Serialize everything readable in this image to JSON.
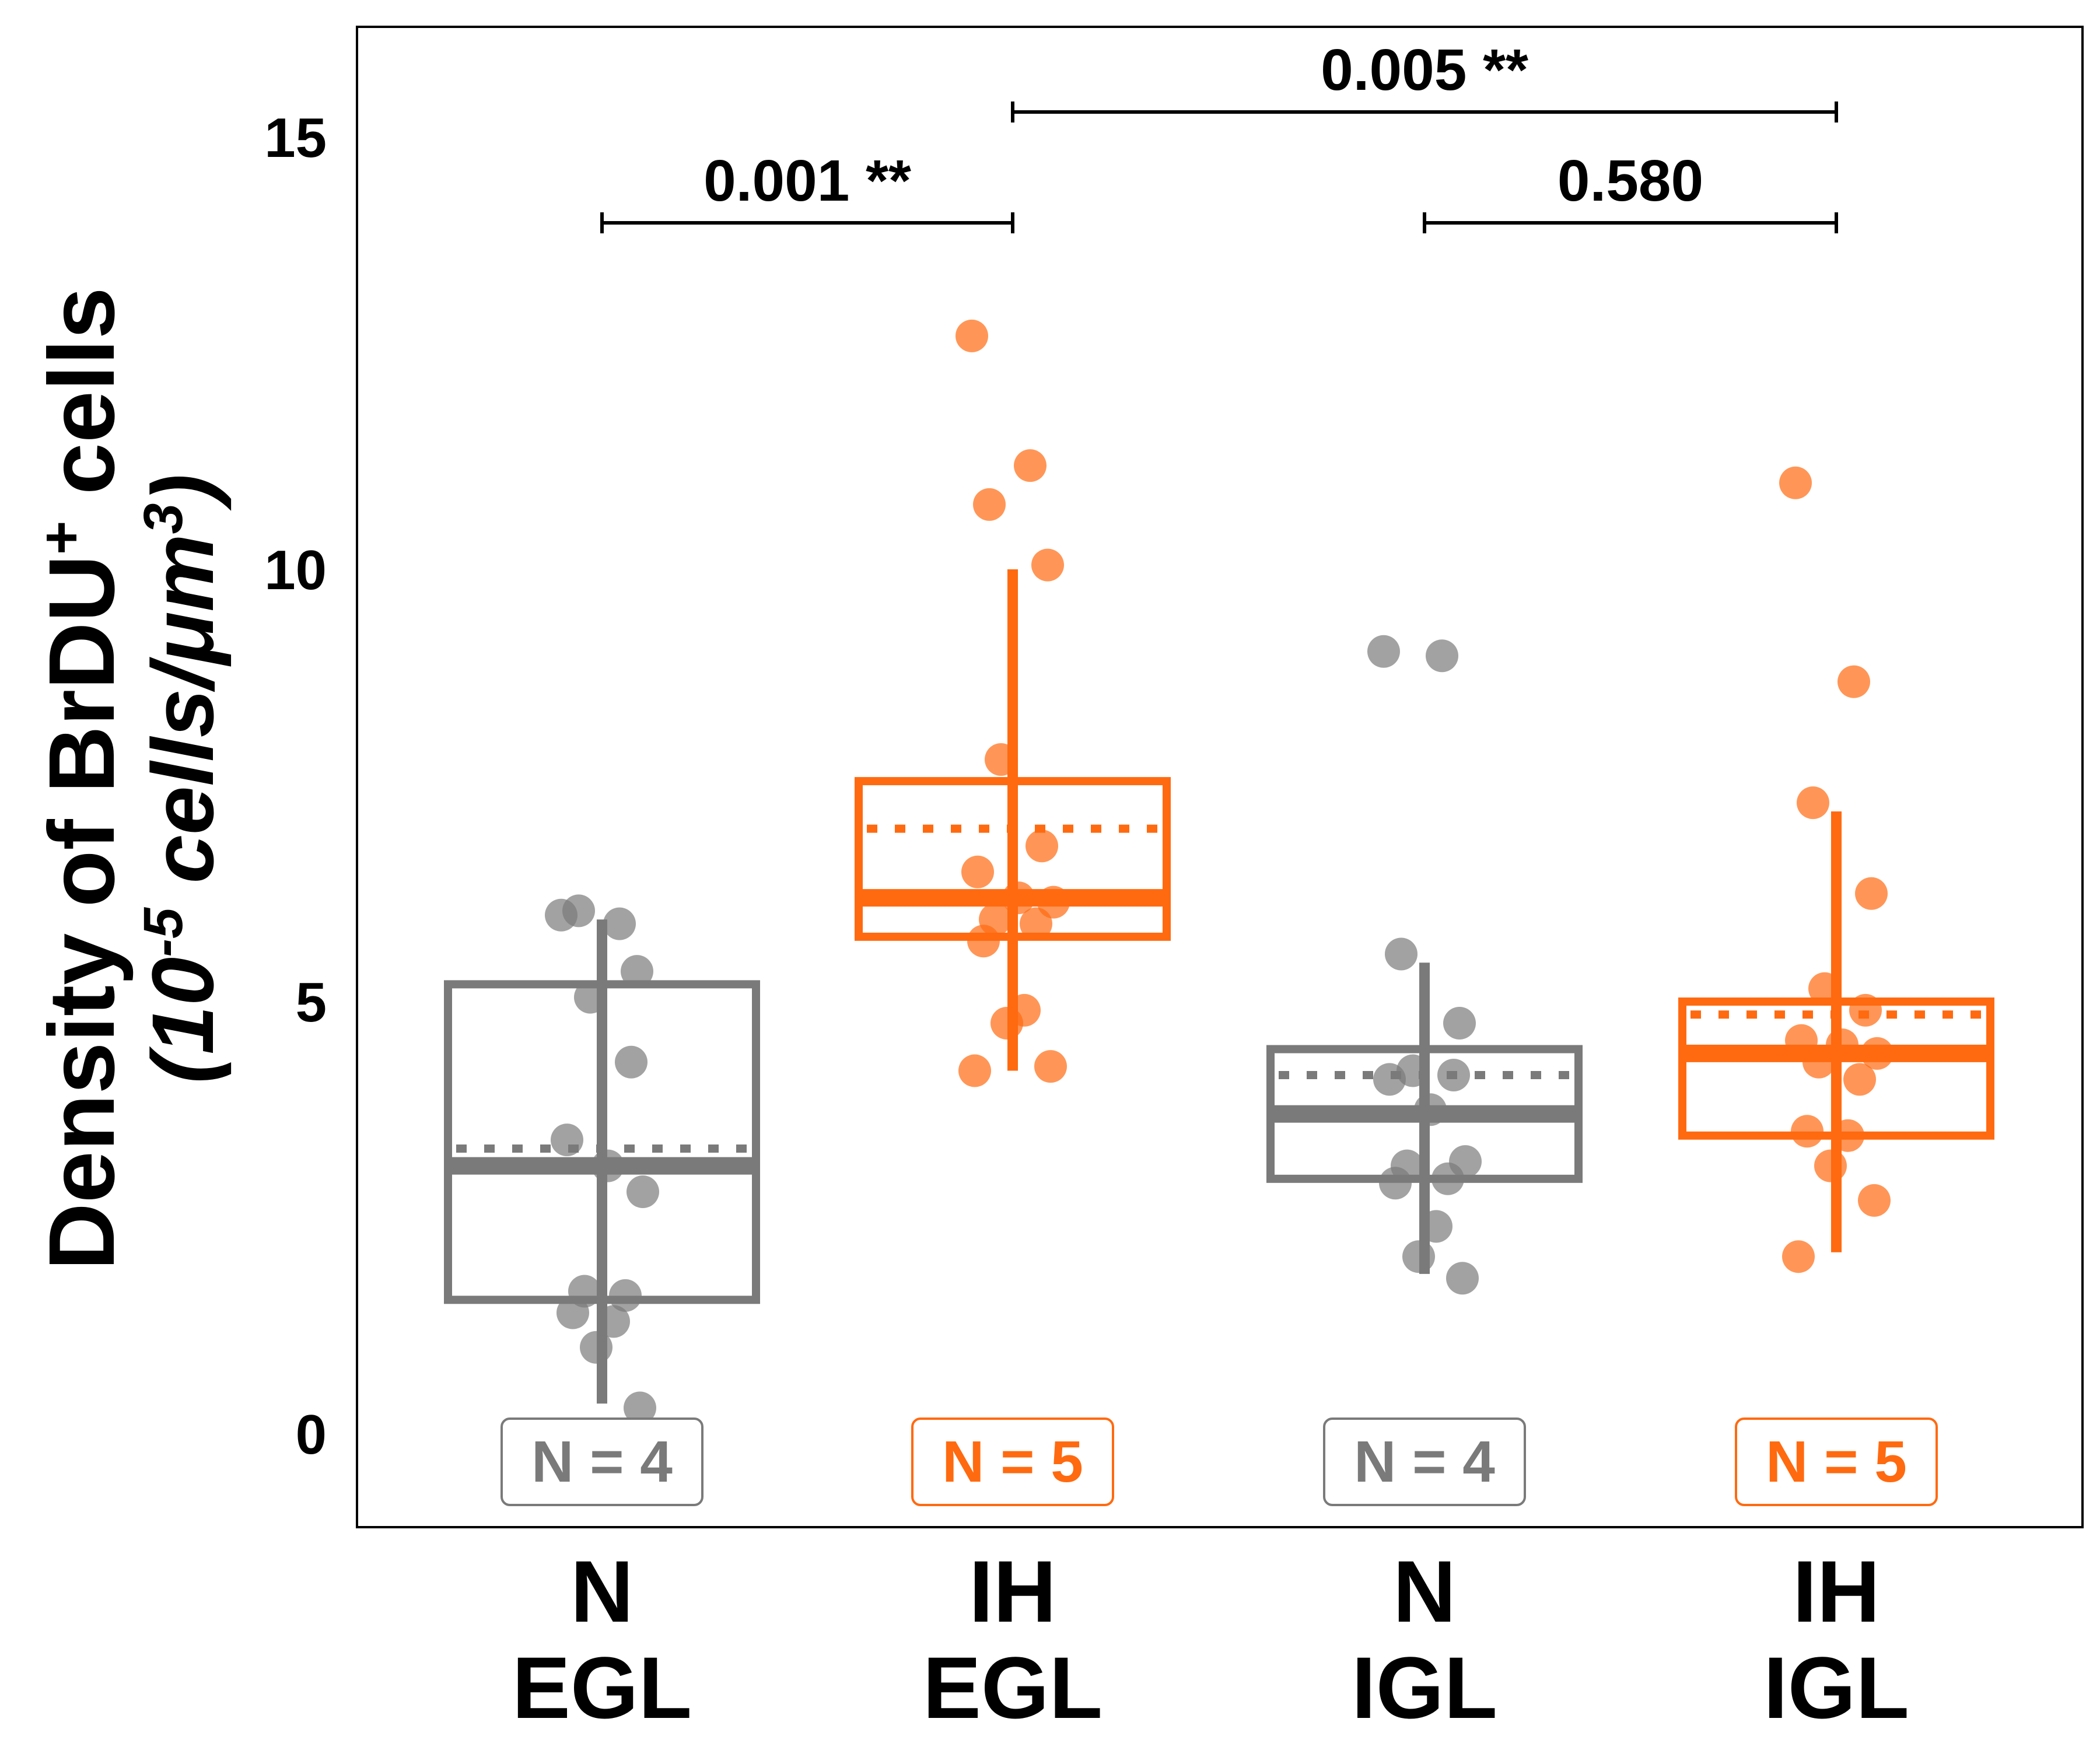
{
  "chart_data": {
    "type": "box",
    "ylabel_line1_main": "Density of BrDU",
    "ylabel_line1_sup": "+",
    "ylabel_line1_end": " cells",
    "ylabel_line2_open": "(10",
    "ylabel_line2_sup1": "-5",
    "ylabel_line2_mid": " cells/μm",
    "ylabel_line2_sup2": "3",
    "ylabel_line2_close": ")",
    "ylim": [
      -1.1,
      16.4
    ],
    "yticks": [
      "0",
      "5",
      "10",
      "15"
    ],
    "grid": false,
    "colors": {
      "N": "#7a7a7a",
      "IH": "#ff6a10"
    },
    "groups": [
      {
        "label_top": "N",
        "label_bottom": "EGL",
        "color": "#7a7a7a",
        "n_label": "N = 4",
        "box": {
          "q1": 1.55,
          "median": 3.1,
          "q3": 5.2,
          "mean": 3.3,
          "whisker_low": 0.35,
          "whisker_high": 5.95
        },
        "points": [
          6.0,
          5.9,
          6.05,
          5.35,
          5.05,
          4.3,
          3.4,
          3.1,
          2.8,
          1.65,
          1.6,
          1.4,
          1.3,
          1.0,
          0.3
        ]
      },
      {
        "label_top": "IH",
        "label_bottom": "EGL",
        "color": "#ff6a10",
        "n_label": "N = 5",
        "box": {
          "q1": 5.75,
          "median": 6.2,
          "q3": 7.55,
          "mean": 7.0,
          "whisker_low": 4.2,
          "whisker_high": 10.0
        },
        "points": [
          12.7,
          11.2,
          10.75,
          10.05,
          7.8,
          6.8,
          6.5,
          6.2,
          6.15,
          5.95,
          5.9,
          5.7,
          4.9,
          4.75,
          4.25,
          4.2
        ]
      },
      {
        "label_top": "N",
        "label_bottom": "IGL",
        "color": "#7a7a7a",
        "n_label": "N = 4",
        "box": {
          "q1": 2.95,
          "median": 3.7,
          "q3": 4.45,
          "mean": 4.15,
          "whisker_low": 1.85,
          "whisker_high": 5.45
        },
        "points": [
          9.05,
          9.0,
          5.55,
          4.75,
          4.2,
          4.15,
          4.1,
          3.75,
          3.15,
          3.1,
          2.95,
          2.9,
          2.4,
          2.05,
          1.8
        ]
      },
      {
        "label_top": "IH",
        "label_bottom": "IGL",
        "color": "#ff6a10",
        "n_label": "N = 5",
        "box": {
          "q1": 3.45,
          "median": 4.4,
          "q3": 5.0,
          "mean": 4.85,
          "whisker_low": 2.1,
          "whisker_high": 7.2
        },
        "points": [
          11.0,
          8.7,
          7.3,
          6.25,
          5.15,
          4.9,
          4.55,
          4.5,
          4.4,
          4.3,
          4.1,
          3.5,
          3.45,
          3.1,
          2.7,
          2.05
        ]
      }
    ],
    "comparisons": [
      {
        "from": 0,
        "to": 1,
        "y": 14.0,
        "label": "0.001 **"
      },
      {
        "from": 1,
        "to": 3,
        "y": 15.3,
        "label": "0.005 **"
      },
      {
        "from": 2,
        "to": 3,
        "y": 14.0,
        "label": "0.580"
      }
    ]
  }
}
